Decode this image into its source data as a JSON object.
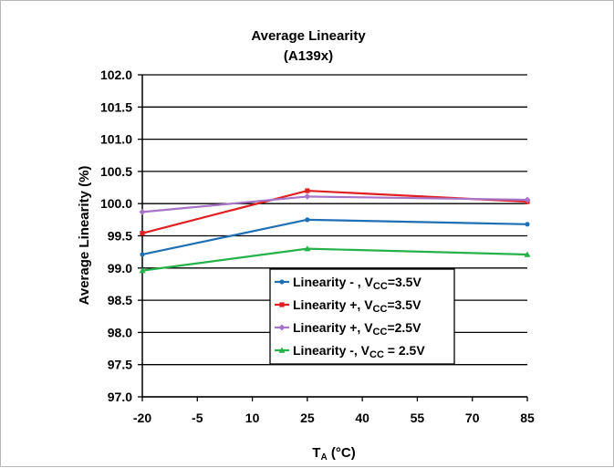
{
  "chart_data": {
    "type": "line",
    "title": "Average Linearity",
    "subtitle": "(A139x)",
    "ylabel": "Average Linearity (%)",
    "xlabel": {
      "main": "T",
      "sub": "A",
      "rest": " (°C)"
    },
    "ylim": [
      97.0,
      102.0
    ],
    "yticks": [
      "97.0",
      "97.5",
      "98.0",
      "98.5",
      "99.0",
      "99.5",
      "100.0",
      "100.5",
      "101.0",
      "101.5",
      "102.0"
    ],
    "xlim": [
      -20,
      85
    ],
    "xticks": [
      "-20",
      "-5",
      "10",
      "25",
      "40",
      "55",
      "70",
      "85"
    ],
    "grid": "horizontal",
    "legend_position": "center-bottom",
    "series": [
      {
        "name": {
          "pre": "Linearity - , V",
          "sub": "CC",
          "post": "=3.5V"
        },
        "color": "#1f6fb4",
        "marker": "circle",
        "x": [
          -20,
          25,
          85
        ],
        "values": [
          99.21,
          99.75,
          99.68
        ]
      },
      {
        "name": {
          "pre": "Linearity +, V",
          "sub": "CC",
          "post": "=3.5V"
        },
        "color": "#e02020",
        "marker": "square",
        "x": [
          -20,
          25,
          85
        ],
        "values": [
          99.54,
          100.2,
          100.03
        ]
      },
      {
        "name": {
          "pre": "Linearity +, V",
          "sub": "CC",
          "post": "=2.5V"
        },
        "color": "#a774c8",
        "marker": "diamond",
        "x": [
          -20,
          25,
          85
        ],
        "values": [
          99.87,
          100.11,
          100.06
        ]
      },
      {
        "name": {
          "pre": "Linearity -, V",
          "sub": "CC",
          "post": " = 2.5V"
        },
        "color": "#25b24a",
        "marker": "triangle",
        "x": [
          -20,
          25,
          85
        ],
        "values": [
          98.96,
          99.3,
          99.21
        ]
      }
    ]
  }
}
